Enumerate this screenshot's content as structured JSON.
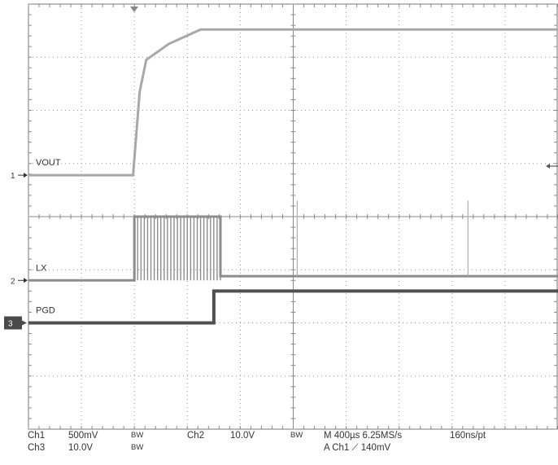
{
  "chart_data": {
    "type": "line",
    "title": "",
    "grid": true,
    "time_per_div_us": 400,
    "x_range_us": [
      -800,
      3200
    ],
    "y_range_div": [
      -4,
      4
    ],
    "series": [
      {
        "name": "VOUT",
        "channel": 1,
        "ground_div": 0.78,
        "color": "#a8a8a8",
        "x": [
          -800,
          -10,
          40,
          90,
          260,
          500,
          700,
          3200
        ],
        "y": [
          0.78,
          0.78,
          2.35,
          2.95,
          3.25,
          3.52,
          3.52,
          3.52
        ]
      },
      {
        "name": "LX",
        "channel": 2,
        "ground_div": -1.2,
        "color": "#8c8c8c",
        "x": [
          -800,
          0,
          0,
          650,
          650,
          3200
        ],
        "y": [
          -1.2,
          -1.2,
          0,
          0,
          -1.12,
          -1.12
        ],
        "switching_burst_us": [
          0,
          650
        ],
        "glitches_us": [
          1230,
          2520
        ]
      },
      {
        "name": "PGD",
        "channel": 3,
        "ground_div": -2.0,
        "color": "#505050",
        "x": [
          -800,
          600,
          600,
          3200
        ],
        "y": [
          -2.0,
          -2.0,
          -1.4,
          -1.4
        ]
      }
    ],
    "trigger_position_us": 0,
    "trigger_level_marker_div": 0.95
  },
  "readout": {
    "ch1_label": "Ch1",
    "ch1_scale": "500mV",
    "ch1_bw": "BW",
    "ch2_label": "Ch2",
    "ch2_scale": "10.0V",
    "ch2_bw": "BW",
    "ch3_label": "Ch3",
    "ch3_scale": "10.0V",
    "ch3_bw": "BW",
    "horizontal": "M 400µs 6.25MS/s",
    "record": "160ns/pt",
    "trigger": "A  Ch1  ⟋  140mV"
  },
  "markers": {
    "ch1": "1",
    "ch2": "2",
    "ch3": "3"
  }
}
